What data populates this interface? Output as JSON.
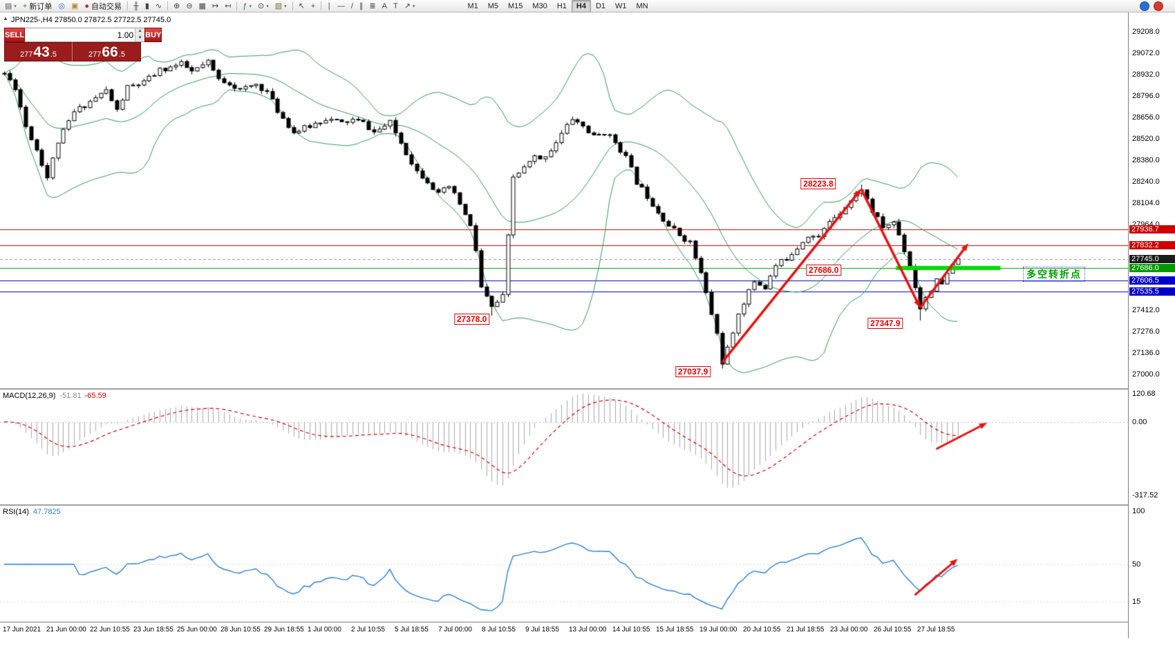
{
  "toolbar": {
    "caret": "▾",
    "buttons": [
      {
        "name": "new-chart-button",
        "glyph": "▤",
        "color": "#555",
        "dropdown": true
      },
      {
        "name": "new-order-button",
        "glyph": "+",
        "color": "#179617",
        "label": "新订单"
      },
      {
        "name": "mql5-wizard-button",
        "glyph": "◎",
        "color": "#2b6fc2"
      },
      {
        "name": "data-folder-button",
        "glyph": "▣",
        "color": "#b5882a"
      },
      {
        "name": "auto-trading-button",
        "glyph": "●",
        "color": "#cc2222",
        "label": "自动交易"
      },
      {
        "sep": true
      },
      {
        "name": "bar-chart-button",
        "glyph": "╫",
        "color": "#444"
      },
      {
        "name": "candlestick-chart-button",
        "glyph": "▮",
        "color": "#444"
      },
      {
        "name": "line-chart-button",
        "glyph": "∿",
        "color": "#444"
      },
      {
        "sep": true
      },
      {
        "name": "zoom-in-button",
        "glyph": "⊕",
        "color": "#444"
      },
      {
        "name": "zoom-out-button",
        "glyph": "⊖",
        "color": "#444"
      },
      {
        "name": "tile-windows-button",
        "glyph": "▦",
        "color": "#444"
      },
      {
        "name": "auto-scroll-button",
        "glyph": "↦",
        "color": "#444"
      },
      {
        "name": "chart-shift-button",
        "glyph": "↤",
        "color": "#444"
      },
      {
        "sep": true
      },
      {
        "name": "indicators-button",
        "glyph": "ƒ",
        "color": "#1a7a1a",
        "dropdown": true
      },
      {
        "name": "periods-button",
        "glyph": "⊙",
        "color": "#444",
        "dropdown": true
      },
      {
        "name": "templates-button",
        "glyph": "▧",
        "color": "#8a6a2a",
        "dropdown": true
      },
      {
        "sep": true
      },
      {
        "name": "cursor-button",
        "glyph": "↖",
        "color": "#444"
      },
      {
        "name": "crosshair-button",
        "glyph": "+",
        "color": "#444"
      },
      {
        "sep": true
      },
      {
        "name": "vertical-line-button",
        "glyph": "∣",
        "color": "#444"
      },
      {
        "name": "horizontal-line-button",
        "glyph": "—",
        "color": "#444"
      },
      {
        "name": "trendline-button",
        "glyph": "/",
        "color": "#444"
      },
      {
        "name": "equidistant-channel-button",
        "glyph": "∥",
        "color": "#444"
      },
      {
        "name": "fibonacci-button",
        "glyph": "≣",
        "color": "#444"
      },
      {
        "name": "text-button",
        "glyph": "A",
        "color": "#444"
      },
      {
        "name": "text-label-button",
        "glyph": "T",
        "color": "#444"
      },
      {
        "name": "arrows-button",
        "glyph": "↗",
        "color": "#444",
        "dropdown": true
      }
    ],
    "timeframes": [
      "M1",
      "M5",
      "M15",
      "M30",
      "H1",
      "H4",
      "D1",
      "W1",
      "MN"
    ],
    "active_timeframe": "H4",
    "right_icons": [
      {
        "name": "community-icon",
        "color": "#2a6fd6"
      },
      {
        "name": "notifications-icon",
        "color": "#d63a2a"
      }
    ]
  },
  "trade_widget": {
    "collapse_glyph": "▲",
    "sell_label": "SELL",
    "buy_label": "BUY",
    "volume": "1.00",
    "spinner_up": "▲",
    "spinner_down": "▼",
    "sell_price": {
      "pre": "277",
      "big": "43",
      "suf": ".5"
    },
    "buy_price": {
      "pre": "277",
      "big": "66",
      "suf": ".5"
    }
  },
  "chart_data": {
    "type": "candlestick",
    "symbol": "JPN225-",
    "timeframe": "H4",
    "symbol_info": "JPN225-,H4 27850.0 27872.5 27722.5 27745.0",
    "ohlc": {
      "open": 27850.0,
      "high": 27872.5,
      "low": 27722.5,
      "close": 27745.0
    },
    "current_price": 27745.0,
    "price_axis_ticks": [
      "29208.0",
      "29072.0",
      "28932.0",
      "28796.0",
      "28656.0",
      "28520.0",
      "28380.0",
      "28240.0",
      "28104.0",
      "27964.0",
      "27412.0",
      "27276.0",
      "27136.0",
      "27000.0"
    ],
    "levels": [
      {
        "price": 27936.7,
        "label": "27936.7",
        "color": "#cc0000",
        "style": "solid"
      },
      {
        "price": 27832.2,
        "label": "27832.2",
        "color": "#cc0000",
        "style": "solid"
      },
      {
        "price": 27745.0,
        "label": "27745.0",
        "color": "#1a1a1a",
        "style": "current"
      },
      {
        "price": 27686.0,
        "label": "27686.0",
        "color": "#009900",
        "style": "solid"
      },
      {
        "price": 27606.5,
        "label": "27606.5",
        "color": "#0000cc",
        "style": "solid"
      },
      {
        "price": 27535.5,
        "label": "27535.5",
        "color": "#0000cc",
        "style": "solid"
      }
    ],
    "candle_count": 179,
    "price_path_anchors": [
      [
        0,
        28940
      ],
      [
        2,
        28850
      ],
      [
        4,
        28600
      ],
      [
        6,
        28450
      ],
      [
        8,
        28270
      ],
      [
        10,
        28500
      ],
      [
        13,
        28690
      ],
      [
        16,
        28760
      ],
      [
        19,
        28830
      ],
      [
        21,
        28700
      ],
      [
        23,
        28850
      ],
      [
        26,
        28880
      ],
      [
        29,
        28960
      ],
      [
        33,
        29000
      ],
      [
        35,
        28950
      ],
      [
        38,
        29010
      ],
      [
        40,
        28900
      ],
      [
        42,
        28880
      ],
      [
        44,
        28830
      ],
      [
        47,
        28870
      ],
      [
        49,
        28820
      ],
      [
        51,
        28700
      ],
      [
        54,
        28560
      ],
      [
        57,
        28600
      ],
      [
        60,
        28650
      ],
      [
        63,
        28620
      ],
      [
        65,
        28640
      ],
      [
        67,
        28620
      ],
      [
        69,
        28560
      ],
      [
        72,
        28620
      ],
      [
        75,
        28430
      ],
      [
        77,
        28310
      ],
      [
        79,
        28250
      ],
      [
        81,
        28160
      ],
      [
        83,
        28210
      ],
      [
        85,
        28100
      ],
      [
        87,
        27950
      ],
      [
        88,
        27800
      ],
      [
        89,
        27560
      ],
      [
        91,
        27430
      ],
      [
        93,
        27500
      ],
      [
        95,
        28270
      ],
      [
        97,
        28330
      ],
      [
        99,
        28400
      ],
      [
        100,
        28380
      ],
      [
        102,
        28450
      ],
      [
        104,
        28550
      ],
      [
        106,
        28650
      ],
      [
        108,
        28600
      ],
      [
        110,
        28530
      ],
      [
        112,
        28560
      ],
      [
        114,
        28500
      ],
      [
        116,
        28400
      ],
      [
        118,
        28240
      ],
      [
        120,
        28150
      ],
      [
        122,
        28050
      ],
      [
        124,
        27960
      ],
      [
        126,
        27900
      ],
      [
        128,
        27850
      ],
      [
        130,
        27650
      ],
      [
        131,
        27520
      ],
      [
        133,
        27260
      ],
      [
        134,
        27080
      ],
      [
        136,
        27250
      ],
      [
        137,
        27400
      ],
      [
        140,
        27600
      ],
      [
        142,
        27560
      ],
      [
        144,
        27700
      ],
      [
        146,
        27750
      ],
      [
        148,
        27820
      ],
      [
        150,
        27900
      ],
      [
        152,
        27880
      ],
      [
        154,
        27990
      ],
      [
        156,
        28050
      ],
      [
        158,
        28120
      ],
      [
        160,
        28200
      ],
      [
        162,
        28050
      ],
      [
        164,
        27950
      ],
      [
        166,
        27980
      ],
      [
        167,
        27900
      ],
      [
        169,
        27700
      ],
      [
        171,
        27430
      ],
      [
        172,
        27500
      ],
      [
        174,
        27600
      ],
      [
        175,
        27580
      ],
      [
        177,
        27700
      ],
      [
        178,
        27745
      ]
    ],
    "pinned_highs": [
      [
        160,
        28223.8
      ]
    ],
    "pinned_lows": [
      [
        91,
        27378.0
      ],
      [
        134,
        27037.9
      ],
      [
        171,
        27347.9
      ]
    ],
    "bollinger": {
      "period": 20,
      "deviation": 2
    },
    "annotations": [
      {
        "text": "28223.8",
        "i": 152.0,
        "price": 28230
      },
      {
        "text": "27686.0",
        "i": 153.0,
        "price": 27672
      },
      {
        "text": "27347.9",
        "i": 164.5,
        "price": 27330
      },
      {
        "text": "27378.0",
        "i": 87.3,
        "price": 27355
      },
      {
        "text": "27037.9",
        "i": 128.6,
        "price": 27020
      }
    ],
    "trend_arrows": [
      {
        "from": [
          134,
          27075
        ],
        "to": [
          160,
          28195
        ]
      },
      {
        "from": [
          160,
          28195
        ],
        "to": [
          171,
          27430
        ]
      },
      {
        "from": [
          171,
          27430
        ],
        "to": [
          180,
          27845
        ]
      }
    ],
    "support_segment": {
      "i1": 166.5,
      "i2": 186,
      "price": 27686,
      "color": "#00dd00"
    },
    "turning_point_label": {
      "text": "多空转折点",
      "i": 196,
      "price": 27645,
      "color": "#00a000"
    },
    "time_labels": [
      "17 Jun 2021",
      "21 Jun 00:00",
      "22 Jun 10:55",
      "23 Jun 18:55",
      "25 Jun 00:00",
      "28 Jun 10:55",
      "29 Jun 18:55",
      "1 Jul 00:00",
      "2 Jul 10:55",
      "5 Jul 18:55",
      "7 Jul 00:00",
      "8 Jul 10:55",
      "9 Jul 18:55",
      "13 Jul 00:00",
      "14 Jul 10:55",
      "15 Jul 18:55",
      "19 Jul 00:00",
      "20 Jul 10:55",
      "21 Jul 18:55",
      "23 Jul 00:00",
      "26 Jul 10:55",
      "27 Jul 18:55"
    ],
    "macd": {
      "name": "MACD(12,26,9)",
      "value_main": "-51.81",
      "value_signal": "-65.59",
      "params": {
        "fast": 12,
        "slow": 26,
        "signal": 9
      },
      "axis": [
        {
          "label": "120.68",
          "value": 120.68
        },
        {
          "label": "0.00",
          "value": 0
        },
        {
          "label": "-317.52",
          "value": -317.52
        }
      ],
      "arrow": {
        "from": [
          174,
          -118
        ],
        "to": [
          183.5,
          -4
        ]
      }
    },
    "rsi": {
      "name": "RSI(14)",
      "value": "47.7825",
      "period": 14,
      "axis": [
        {
          "label": "100",
          "value": 100
        },
        {
          "label": "50",
          "value": 50
        },
        {
          "label": "15",
          "value": 15
        }
      ],
      "arrow": {
        "from": [
          170,
          21
        ],
        "to": [
          178,
          55
        ]
      }
    }
  },
  "colors": {
    "up_candle": "#ffffff",
    "down_candle": "#000000",
    "candle_outline": "#000000",
    "bollinger": "#2e9e50",
    "macd_hist": "#a8a8a8",
    "macd_signal": "#d40000",
    "rsi_line": "#2a7fd4",
    "arrow": "#e81212"
  }
}
